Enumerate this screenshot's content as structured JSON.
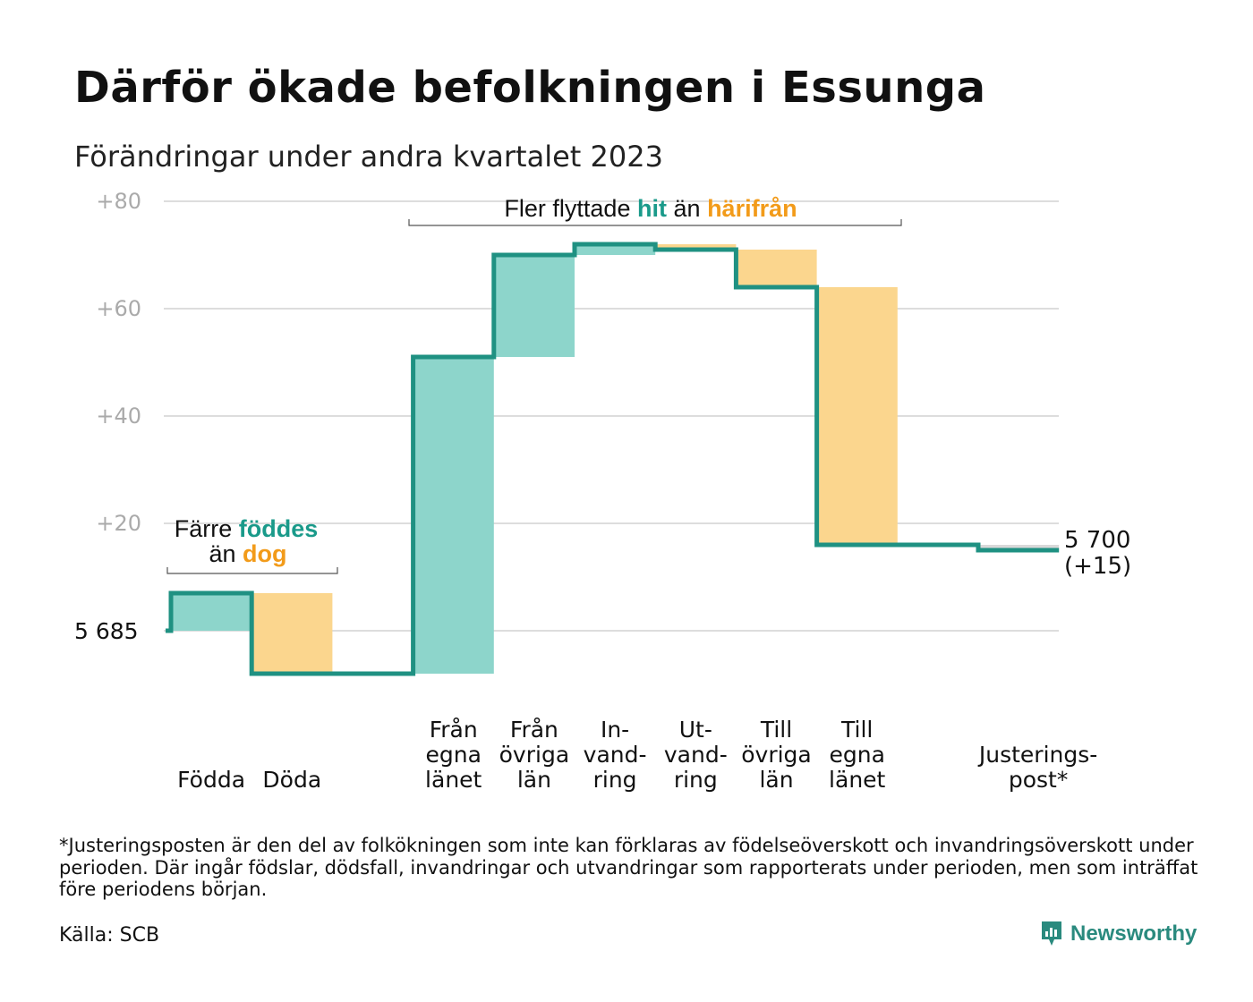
{
  "title": "Därför ökade befolkningen i Essunga",
  "subtitle": "Förändringar under andra kvartalet 2023",
  "colors": {
    "increase": "#8dd5cb",
    "decrease": "#fbd68e",
    "adjustment": "#d9d9d9",
    "line": "#1f9182",
    "accent_teal": "#1a9a8a",
    "accent_orange": "#f29b1a",
    "grid": "#dddddd",
    "tick": "#aaaaaa"
  },
  "chart_data": {
    "type": "waterfall",
    "base_value": "5 685",
    "end_value": "5 700",
    "end_change": "(+15)",
    "ylim": [
      -8,
      80
    ],
    "yticks": [
      "+20",
      "+40",
      "+60",
      "+80"
    ],
    "categories": [
      {
        "label": [
          "Födda"
        ],
        "change": 7,
        "kind": "increase"
      },
      {
        "label": [
          "Döda"
        ],
        "change": -15,
        "kind": "decrease"
      },
      {
        "label": [],
        "change": 0,
        "kind": "none"
      },
      {
        "label": [
          "Från",
          "egna",
          "länet"
        ],
        "change": 59,
        "kind": "increase"
      },
      {
        "label": [
          "Från",
          "övriga",
          "län"
        ],
        "change": 19,
        "kind": "increase"
      },
      {
        "label": [
          "In-",
          "vand-",
          "ring"
        ],
        "change": 2,
        "kind": "increase"
      },
      {
        "label": [
          "Ut-",
          "vand-",
          "ring"
        ],
        "change": -1,
        "kind": "decrease"
      },
      {
        "label": [
          "Till",
          "övriga",
          "län"
        ],
        "change": -7,
        "kind": "decrease"
      },
      {
        "label": [
          "Till",
          "egna",
          "länet"
        ],
        "change": -48,
        "kind": "decrease"
      },
      {
        "label": [],
        "change": 0,
        "kind": "none"
      },
      {
        "label": [
          "Justerings-",
          "post*"
        ],
        "change": -1,
        "kind": "adjustment"
      }
    ],
    "annotations": {
      "births": {
        "line1_a": "Färre",
        "line1_b": "föddes",
        "line2_a": "än",
        "line2_b": "dog"
      },
      "migration": {
        "part_a": "Fler flyttade",
        "part_b": "hit",
        "part_c": "än",
        "part_d": "härifrån"
      }
    }
  },
  "footnote": "*Justeringsposten är den del av folkökningen som inte kan förklaras av födelseöverskott och invandringsöverskott under perioden. Där ingår födslar, dödsfall, invandringar och utvandringar som rapporterats under perioden, men som inträffat före periodens början.",
  "source": "Källa: SCB",
  "brand": "Newsworthy"
}
